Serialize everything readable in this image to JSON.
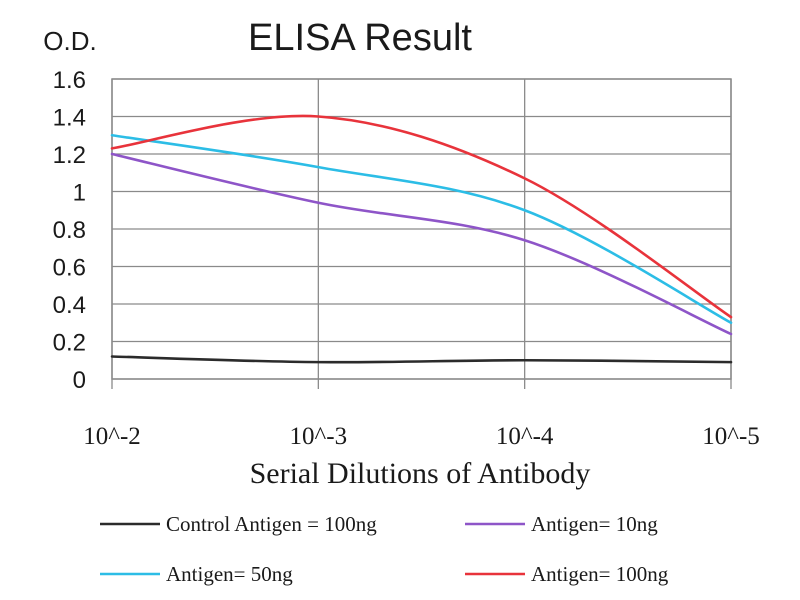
{
  "chart_data": {
    "type": "line",
    "title": "ELISA Result",
    "ylabel": "O.D.",
    "xlabel": "Serial Dilutions of Antibody",
    "x": [
      "10^-2",
      "10^-3",
      "10^-4",
      "10^-5"
    ],
    "ylim": [
      0,
      1.6
    ],
    "yticks": [
      "0",
      "0.2",
      "0.4",
      "0.6",
      "0.8",
      "1",
      "1.2",
      "1.4",
      "1.6"
    ],
    "grid": true,
    "legend_position": "bottom",
    "series": [
      {
        "name": "Control Antigen = 100ng",
        "color": "#2b2b2b",
        "values": [
          0.12,
          0.09,
          0.1,
          0.09
        ]
      },
      {
        "name": "Antigen= 10ng",
        "color": "#8e55c8",
        "values": [
          1.2,
          0.94,
          0.74,
          0.24
        ]
      },
      {
        "name": "Antigen= 50ng",
        "color": "#2cbde6",
        "values": [
          1.3,
          1.13,
          0.9,
          0.3
        ]
      },
      {
        "name": "Antigen= 100ng",
        "color": "#e8333b",
        "values": [
          1.23,
          1.4,
          1.07,
          0.33
        ]
      }
    ]
  }
}
